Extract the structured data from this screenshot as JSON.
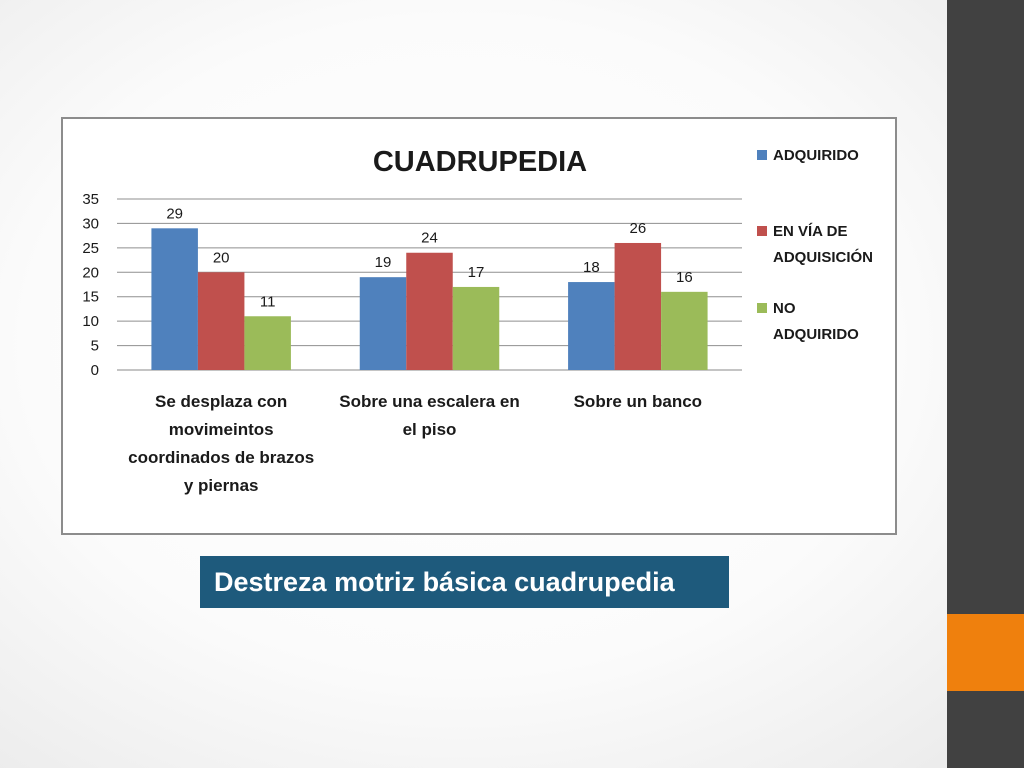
{
  "slide": {
    "caption": "Destreza motriz básica cuadrupedia",
    "sidebar_color": "#414141",
    "accent_color": "#ef800d",
    "caption_bg": "#1e5a7c"
  },
  "chart_data": {
    "type": "bar",
    "title": "CUADRUPEDIA",
    "xlabel": "",
    "ylabel": "",
    "ylim": [
      0,
      35
    ],
    "yticks": [
      "0",
      "5",
      "10",
      "15",
      "20",
      "25",
      "30",
      "35"
    ],
    "grid": true,
    "legend_position": "right",
    "categories": [
      [
        "Se desplaza con",
        "movimeintos",
        "coordinados de brazos",
        "y piernas"
      ],
      [
        "Sobre una escalera en",
        "el piso"
      ],
      [
        "Sobre un banco"
      ]
    ],
    "series": [
      {
        "name": "ADQUIRIDO",
        "legend_lines": [
          "ADQUIRIDO"
        ],
        "color": "#4f81bd",
        "values": [
          29,
          19,
          18
        ]
      },
      {
        "name": "EN VÍA DE ADQUISICIÓN",
        "legend_lines": [
          "EN VÍA DE",
          "ADQUISICIÓN"
        ],
        "color": "#c0504d",
        "values": [
          20,
          24,
          26
        ]
      },
      {
        "name": "NO ADQUIRIDO",
        "legend_lines": [
          "NO",
          "ADQUIRIDO"
        ],
        "color": "#9bbb59",
        "values": [
          11,
          17,
          16
        ]
      }
    ]
  }
}
